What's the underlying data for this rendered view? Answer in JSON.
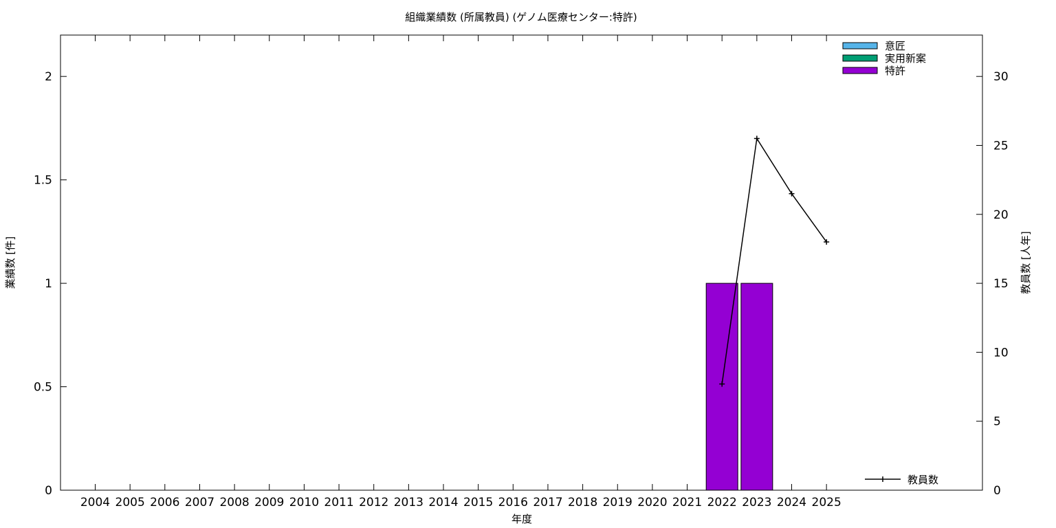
{
  "chart_data": {
    "type": "bar",
    "title": "組織業績数 (所属教員) (ゲノム医療センター:特許)",
    "xlabel": "年度",
    "ylabel": "業績数 [件]",
    "y2label": "教員数 [人年]",
    "categories": [
      "2004",
      "2005",
      "2006",
      "2007",
      "2008",
      "2009",
      "2010",
      "2011",
      "2012",
      "2013",
      "2014",
      "2015",
      "2016",
      "2017",
      "2018",
      "2019",
      "2020",
      "2021",
      "2022",
      "2023",
      "2024",
      "2025"
    ],
    "ylim": [
      0,
      2.2
    ],
    "yticks": [
      0,
      0.5,
      1,
      1.5,
      2
    ],
    "y2lim": [
      0,
      33
    ],
    "y2ticks": [
      0,
      5,
      10,
      15,
      20,
      25,
      30
    ],
    "grid": false,
    "legend_position": "top-right",
    "series": [
      {
        "name": "意匠",
        "color": "#56b4e9",
        "values": [
          0,
          0,
          0,
          0,
          0,
          0,
          0,
          0,
          0,
          0,
          0,
          0,
          0,
          0,
          0,
          0,
          0,
          0,
          0,
          0,
          0,
          0
        ]
      },
      {
        "name": "実用新案",
        "color": "#009e73",
        "values": [
          0,
          0,
          0,
          0,
          0,
          0,
          0,
          0,
          0,
          0,
          0,
          0,
          0,
          0,
          0,
          0,
          0,
          0,
          0,
          0,
          0,
          0
        ]
      },
      {
        "name": "特許",
        "color": "#9400d3",
        "values": [
          0,
          0,
          0,
          0,
          0,
          0,
          0,
          0,
          0,
          0,
          0,
          0,
          0,
          0,
          0,
          0,
          0,
          0,
          1,
          1,
          0,
          0
        ]
      }
    ],
    "line_series": {
      "name": "教員数",
      "axis": "right",
      "color": "#000000",
      "points": [
        {
          "x": "2022",
          "y": 7.7
        },
        {
          "x": "2023",
          "y": 25.5
        },
        {
          "x": "2024",
          "y": 21.5
        },
        {
          "x": "2025",
          "y": 18.0
        }
      ]
    }
  }
}
